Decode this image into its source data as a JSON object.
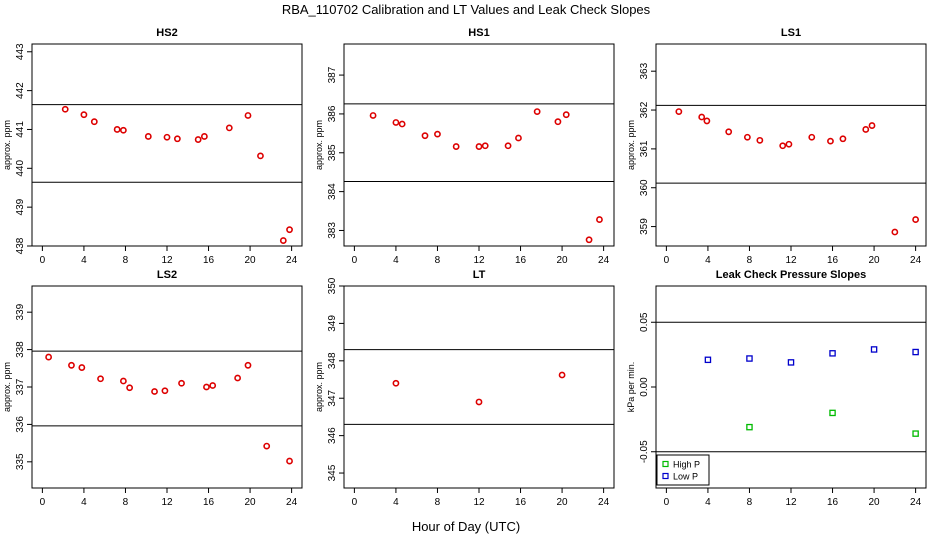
{
  "title": "RBA_110702  Calibration and LT Values and Leak Check Slopes",
  "xlabel": "Hour of Day (UTC)",
  "colors": {
    "point": "#dd0000",
    "high_p": "#00bb00",
    "low_p": "#0000cc",
    "line": "#000000"
  },
  "chart_data": [
    {
      "id": "hs2",
      "type": "scatter",
      "title": "HS2",
      "ylabel": "approx. ppm",
      "xlim": [
        -1,
        25
      ],
      "ylim": [
        438,
        443.2
      ],
      "xticks": [
        0,
        4,
        8,
        12,
        16,
        20,
        24
      ],
      "yticks": [
        438,
        439,
        440,
        441,
        442,
        443
      ],
      "hlines": [
        441.64,
        439.64
      ],
      "points": [
        [
          2.2,
          441.52
        ],
        [
          4,
          441.38
        ],
        [
          5,
          441.2
        ],
        [
          7.2,
          441.0
        ],
        [
          7.8,
          440.98
        ],
        [
          10.2,
          440.82
        ],
        [
          12,
          440.8
        ],
        [
          13,
          440.76
        ],
        [
          15,
          440.74
        ],
        [
          15.6,
          440.82
        ],
        [
          18,
          441.04
        ],
        [
          19.8,
          441.36
        ],
        [
          21,
          440.32
        ],
        [
          23.2,
          438.14
        ],
        [
          23.8,
          438.42
        ]
      ]
    },
    {
      "id": "hs1",
      "type": "scatter",
      "title": "HS1",
      "ylabel": "approx. ppm",
      "xlim": [
        -1,
        25
      ],
      "ylim": [
        382.6,
        387.8
      ],
      "xticks": [
        0,
        4,
        8,
        12,
        16,
        20,
        24
      ],
      "yticks": [
        383,
        384,
        385,
        386,
        387
      ],
      "hlines": [
        386.26,
        384.26
      ],
      "points": [
        [
          1.8,
          385.96
        ],
        [
          4,
          385.78
        ],
        [
          4.6,
          385.74
        ],
        [
          6.8,
          385.44
        ],
        [
          8,
          385.48
        ],
        [
          9.8,
          385.16
        ],
        [
          12,
          385.16
        ],
        [
          12.6,
          385.18
        ],
        [
          14.8,
          385.18
        ],
        [
          15.8,
          385.38
        ],
        [
          17.6,
          386.06
        ],
        [
          19.6,
          385.8
        ],
        [
          20.4,
          385.98
        ],
        [
          22.6,
          382.76
        ],
        [
          23.6,
          383.28
        ]
      ]
    },
    {
      "id": "ls1",
      "type": "scatter",
      "title": "LS1",
      "ylabel": "approx. ppm",
      "xlim": [
        -1,
        25
      ],
      "ylim": [
        358.5,
        363.7
      ],
      "xticks": [
        0,
        4,
        8,
        12,
        16,
        20,
        24
      ],
      "yticks": [
        359,
        360,
        361,
        362,
        363
      ],
      "hlines": [
        362.12,
        360.12
      ],
      "points": [
        [
          1.2,
          361.96
        ],
        [
          3.4,
          361.82
        ],
        [
          3.9,
          361.72
        ],
        [
          6,
          361.44
        ],
        [
          7.8,
          361.3
        ],
        [
          9,
          361.22
        ],
        [
          11.2,
          361.08
        ],
        [
          11.8,
          361.12
        ],
        [
          14,
          361.3
        ],
        [
          15.8,
          361.2
        ],
        [
          17,
          361.26
        ],
        [
          19.2,
          361.5
        ],
        [
          19.8,
          361.6
        ],
        [
          22,
          358.86
        ],
        [
          24,
          359.18
        ]
      ]
    },
    {
      "id": "ls2",
      "type": "scatter",
      "title": "LS2",
      "ylabel": "approx. ppm",
      "xlim": [
        -1,
        25
      ],
      "ylim": [
        334.3,
        339.7
      ],
      "xticks": [
        0,
        4,
        8,
        12,
        16,
        20,
        24
      ],
      "yticks": [
        335,
        336,
        337,
        338,
        339
      ],
      "hlines": [
        337.96,
        335.96
      ],
      "points": [
        [
          0.6,
          337.8
        ],
        [
          2.8,
          337.58
        ],
        [
          3.8,
          337.52
        ],
        [
          5.6,
          337.22
        ],
        [
          7.8,
          337.16
        ],
        [
          8.4,
          336.98
        ],
        [
          10.8,
          336.88
        ],
        [
          11.8,
          336.9
        ],
        [
          13.4,
          337.1
        ],
        [
          15.8,
          337.0
        ],
        [
          16.4,
          337.04
        ],
        [
          18.8,
          337.24
        ],
        [
          19.8,
          337.58
        ],
        [
          21.6,
          335.42
        ],
        [
          23.8,
          335.02
        ]
      ]
    },
    {
      "id": "lt",
      "type": "scatter",
      "title": "LT",
      "ylabel": "approx. ppm",
      "xlim": [
        -1,
        25
      ],
      "ylim": [
        344.6,
        350
      ],
      "xticks": [
        0,
        4,
        8,
        12,
        16,
        20,
        24
      ],
      "yticks": [
        345,
        346,
        347,
        348,
        349,
        350
      ],
      "hlines": [
        348.3,
        346.3
      ],
      "points": [
        [
          4,
          347.4
        ],
        [
          12,
          346.9
        ],
        [
          20,
          347.62
        ]
      ]
    },
    {
      "id": "leak",
      "type": "scatter",
      "title": "Leak Check Pressure Slopes",
      "ylabel": "kPa per min.",
      "xlim": [
        -1,
        25
      ],
      "ylim": [
        -0.078,
        0.078
      ],
      "xticks": [
        0,
        4,
        8,
        12,
        16,
        20,
        24
      ],
      "yticks": [
        -0.05,
        0.0,
        0.05
      ],
      "ytick_labels": [
        "-0.05",
        "0.00",
        "0.05"
      ],
      "hlines": [
        0.05,
        -0.05
      ],
      "legend": {
        "position": "bottom-left",
        "entries": [
          "High P",
          "Low P"
        ]
      },
      "series": [
        {
          "name": "High P",
          "color": "#00bb00",
          "points": [
            [
              8,
              -0.031
            ],
            [
              16,
              -0.02
            ],
            [
              24,
              -0.036
            ]
          ]
        },
        {
          "name": "Low P",
          "color": "#0000cc",
          "points": [
            [
              4,
              0.021
            ],
            [
              8,
              0.022
            ],
            [
              12,
              0.019
            ],
            [
              16,
              0.026
            ],
            [
              20,
              0.029
            ],
            [
              24,
              0.027
            ]
          ]
        }
      ]
    }
  ]
}
